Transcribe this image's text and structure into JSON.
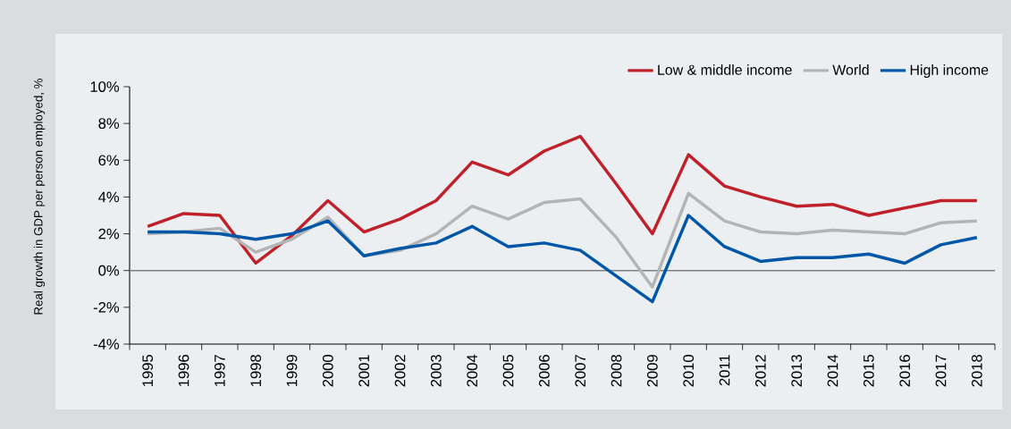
{
  "chart_data": {
    "type": "line",
    "ylabel": "Real growth in GDP per person employed, %",
    "categories": [
      "1995",
      "1996",
      "1997",
      "1998",
      "1999",
      "2000",
      "2001",
      "2002",
      "2003",
      "2004",
      "2005",
      "2006",
      "2007",
      "2008",
      "2009",
      "2010",
      "2011",
      "2012",
      "2013",
      "2014",
      "2015",
      "2016",
      "2017",
      "2018"
    ],
    "series": [
      {
        "name": "Low & middle income",
        "color": "#c0202a",
        "values": [
          2.4,
          3.1,
          3.0,
          0.4,
          1.9,
          3.8,
          2.1,
          2.8,
          3.8,
          5.9,
          5.2,
          6.5,
          7.3,
          4.7,
          2.0,
          6.3,
          4.6,
          4.0,
          3.5,
          3.6,
          3.0,
          3.4,
          3.8,
          3.8
        ]
      },
      {
        "name": "World",
        "color": "#b4b4b4",
        "values": [
          2.0,
          2.1,
          2.3,
          1.0,
          1.7,
          2.9,
          0.8,
          1.1,
          2.0,
          3.5,
          2.8,
          3.7,
          3.9,
          1.8,
          -0.9,
          4.2,
          2.7,
          2.1,
          2.0,
          2.2,
          2.1,
          2.0,
          2.6,
          2.7
        ]
      },
      {
        "name": "High income",
        "color": "#0057a8",
        "values": [
          2.1,
          2.1,
          2.0,
          1.7,
          2.0,
          2.7,
          0.8,
          1.2,
          1.5,
          2.4,
          1.3,
          1.5,
          1.1,
          -0.3,
          -1.7,
          3.0,
          1.3,
          0.5,
          0.7,
          0.7,
          0.9,
          0.4,
          1.4,
          1.8
        ]
      }
    ],
    "ylim": [
      -4,
      10
    ],
    "yticks": [
      {
        "value": -4,
        "label": "-4%"
      },
      {
        "value": -2,
        "label": "-2%"
      },
      {
        "value": 0,
        "label": "0%"
      },
      {
        "value": 2,
        "label": "2%"
      },
      {
        "value": 4,
        "label": "4%"
      },
      {
        "value": 6,
        "label": "6%"
      },
      {
        "value": 8,
        "label": "8%"
      },
      {
        "value": 10,
        "label": "10%"
      }
    ],
    "ref_lines": [
      {
        "axis": "y",
        "value": 0,
        "color": "#808080"
      }
    ],
    "grid": false,
    "legend": "top right",
    "marker": "none",
    "line_style": "solid"
  }
}
